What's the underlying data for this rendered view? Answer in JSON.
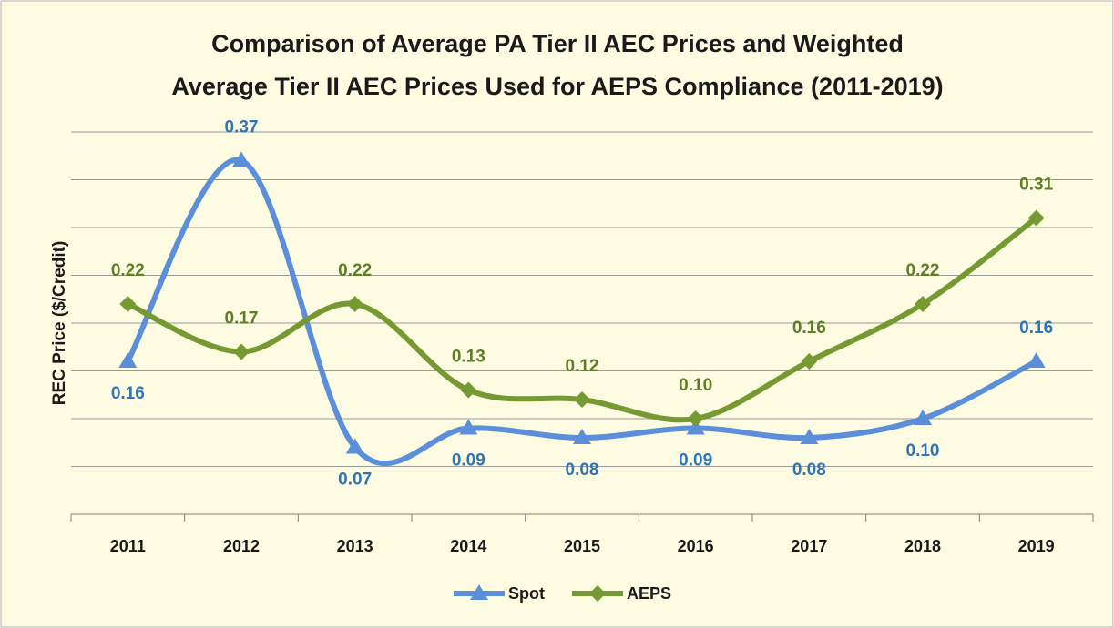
{
  "chart_data": {
    "type": "line",
    "title": [
      "Comparison of Average PA Tier II AEC Prices and Weighted",
      "Average Tier II AEC Prices Used for AEPS Compliance (2011-2019)"
    ],
    "y_label": "REC Price ($/Credit)",
    "categories": [
      "2011",
      "2012",
      "2013",
      "2014",
      "2015",
      "2016",
      "2017",
      "2018",
      "2019"
    ],
    "series": [
      {
        "name": "Spot",
        "color": "#5b8fd9",
        "label_color": "#2e75b6",
        "marker": "triangle",
        "values": [
          0.16,
          0.37,
          0.07,
          0.09,
          0.08,
          0.09,
          0.08,
          0.1,
          0.16
        ],
        "value_labels": [
          "0.16",
          "0.37",
          "0.07",
          "0.09",
          "0.08",
          "0.09",
          "0.08",
          "0.10",
          "0.16"
        ]
      },
      {
        "name": "AEPS",
        "color": "#769a32",
        "label_color": "#5e7d24",
        "marker": "diamond",
        "values": [
          0.22,
          0.17,
          0.22,
          0.13,
          0.12,
          0.1,
          0.16,
          0.22,
          0.31
        ],
        "value_labels": [
          "0.22",
          "0.17",
          "0.22",
          "0.13",
          "0.12",
          "0.10",
          "0.16",
          "0.22",
          "0.31"
        ]
      }
    ],
    "ylim": [
      0,
      0.4
    ],
    "yticks": [
      0,
      0.05,
      0.1,
      0.15,
      0.2,
      0.25,
      0.3,
      0.35,
      0.4
    ],
    "grid": true,
    "legend": "bottom",
    "smooth": true
  }
}
